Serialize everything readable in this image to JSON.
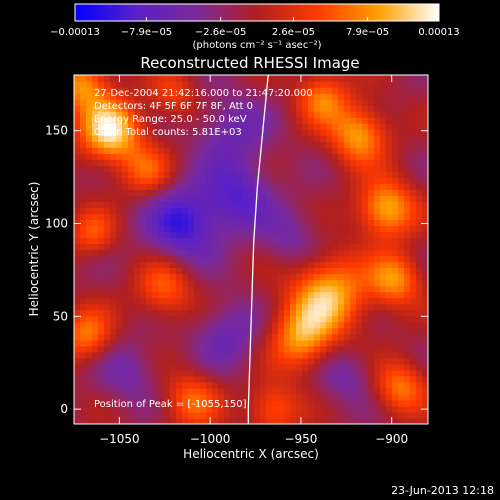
{
  "chart_data": {
    "type": "heatmap",
    "title": "Reconstructed RHESSI Image",
    "xlabel": "Heliocentric X (arcsec)",
    "ylabel": "Heliocentric Y (arcsec)",
    "xlim": [
      -1075,
      -880
    ],
    "ylim": [
      -8,
      180
    ],
    "x_ticks": [
      -1050,
      -1000,
      -950,
      -900
    ],
    "x_tick_labels": [
      "−1050",
      "−1000",
      "−950",
      "−900"
    ],
    "y_ticks": [
      0,
      50,
      100,
      150
    ],
    "y_tick_labels": [
      "0",
      "50",
      "100",
      "150"
    ],
    "colorbar": {
      "min": -0.00013,
      "max": 0.00013,
      "ticks": [
        -0.00013,
        -7.9e-05,
        -2.6e-05,
        2.6e-05,
        7.9e-05,
        0.00013
      ],
      "tick_labels": [
        "−0.00013",
        "−7.9e−05",
        "−2.6e−05",
        "2.6e−05",
        "7.9e−05",
        "0.00013"
      ],
      "unit_label": "(photons cm⁻² s⁻¹ asec⁻²)",
      "colors": [
        "#0000ff",
        "#5a20c8",
        "#7a2a9a",
        "#b02020",
        "#ff3a00",
        "#ffa000",
        "#ffffff"
      ]
    },
    "annotations": [
      "27-Dec-2004 21:42:16.000 to 21:47:20.000",
      "Detectors: 4F 5F 6F 7F 8F, Att 0",
      "Energy Range: 25.0 - 50.0 keV",
      "Clean   Total counts: 5.81E+03"
    ],
    "peak_label": "Position of Peak = [-1055,150]",
    "peak": {
      "x": -1055,
      "y": 150,
      "value": 0.00013
    },
    "limb_curve": [
      [
        -968,
        180
      ],
      [
        -971,
        150
      ],
      [
        -974,
        120
      ],
      [
        -976,
        90
      ],
      [
        -977,
        60
      ],
      [
        -978,
        30
      ],
      [
        -979,
        0
      ],
      [
        -979,
        -8
      ]
    ],
    "blobs": [
      {
        "x": -1055,
        "y": 150,
        "v": 0.00013,
        "s": 12
      },
      {
        "x": -1070,
        "y": 175,
        "v": 9e-05,
        "s": 10
      },
      {
        "x": -1035,
        "y": 128,
        "v": 6e-05,
        "s": 10
      },
      {
        "x": -935,
        "y": 62,
        "v": 0.00011,
        "s": 15
      },
      {
        "x": -950,
        "y": 38,
        "v": 9e-05,
        "s": 12
      },
      {
        "x": -903,
        "y": 108,
        "v": 0.00011,
        "s": 11
      },
      {
        "x": -918,
        "y": 148,
        "v": 0.0001,
        "s": 11
      },
      {
        "x": -898,
        "y": 70,
        "v": 9e-05,
        "s": 10
      },
      {
        "x": -938,
        "y": 168,
        "v": 8e-05,
        "s": 10
      },
      {
        "x": -1025,
        "y": 65,
        "v": 7e-05,
        "s": 11
      },
      {
        "x": -1065,
        "y": 95,
        "v": 6e-05,
        "s": 9
      },
      {
        "x": -1068,
        "y": 40,
        "v": 8e-05,
        "s": 10
      },
      {
        "x": -1010,
        "y": 5,
        "v": 7e-05,
        "s": 11
      },
      {
        "x": -965,
        "y": 0,
        "v": 7e-05,
        "s": 10
      },
      {
        "x": -895,
        "y": 12,
        "v": 8e-05,
        "s": 10
      },
      {
        "x": -1020,
        "y": 170,
        "v": 5e-05,
        "s": 9
      },
      {
        "x": -988,
        "y": 150,
        "v": -5e-05,
        "s": 14
      },
      {
        "x": -1015,
        "y": 100,
        "v": -9e-05,
        "s": 14
      },
      {
        "x": -985,
        "y": 115,
        "v": -7e-05,
        "s": 13
      },
      {
        "x": -955,
        "y": 92,
        "v": -4e-05,
        "s": 12
      },
      {
        "x": -1045,
        "y": 20,
        "v": -4e-05,
        "s": 12
      },
      {
        "x": -990,
        "y": 40,
        "v": -5e-05,
        "s": 13
      },
      {
        "x": -925,
        "y": 18,
        "v": -4e-05,
        "s": 11
      }
    ]
  },
  "footer": {
    "date": "23-Jun-2013 12:18"
  }
}
